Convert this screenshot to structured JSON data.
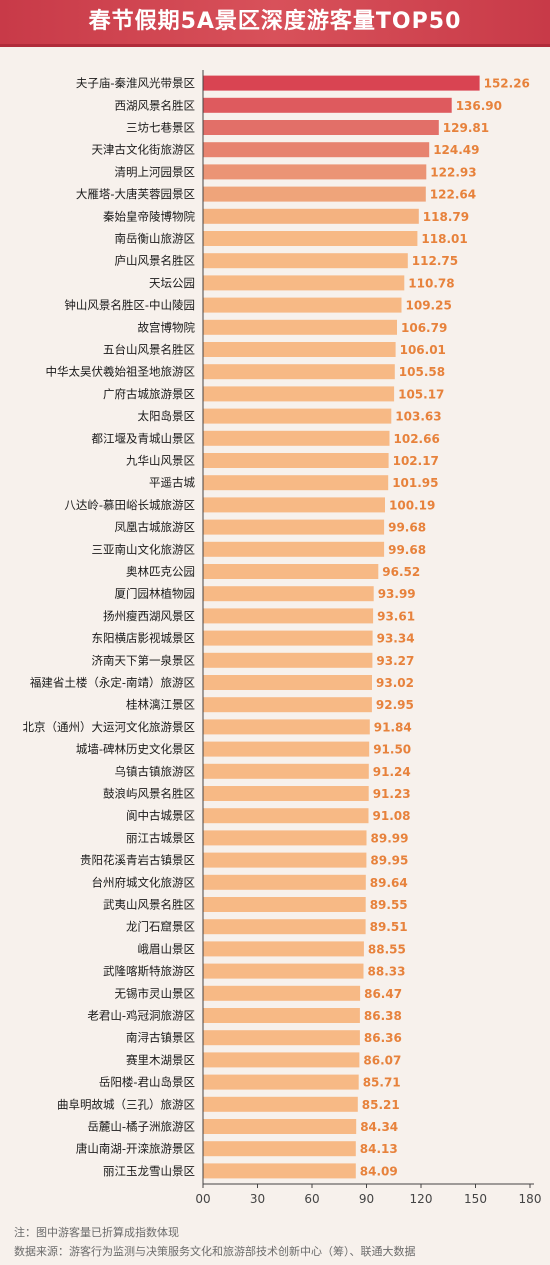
{
  "header": {
    "title": "春节假期5A景区深度游客量TOP50"
  },
  "chart_data": {
    "type": "bar",
    "orientation": "horizontal",
    "title": "春节假期5A景区深度游客量TOP50",
    "categories": [
      "夫子庙-秦淮风光带景区",
      "西湖风景名胜区",
      "三坊七巷景区",
      "天津古文化街旅游区",
      "清明上河园景区",
      "大雁塔-大唐芙蓉园景区",
      "秦始皇帝陵博物院",
      "南岳衡山旅游区",
      "庐山风景名胜区",
      "天坛公园",
      "钟山风景名胜区-中山陵园",
      "故宫博物院",
      "五台山风景名胜区",
      "中华太昊伏羲始祖圣地旅游区",
      "广府古城旅游景区",
      "太阳岛景区",
      "都江堰及青城山景区",
      "九华山风景区",
      "平遥古城",
      "八达岭-慕田峪长城旅游区",
      "凤凰古城旅游区",
      "三亚南山文化旅游区",
      "奥林匹克公园",
      "厦门园林植物园",
      "扬州瘦西湖风景区",
      "东阳横店影视城景区",
      "济南天下第一泉景区",
      "福建省土楼（永定-南靖）旅游区",
      "桂林漓江景区",
      "北京（通州）大运河文化旅游景区",
      "城墙-碑林历史文化景区",
      "乌镇古镇旅游区",
      "鼓浪屿风景名胜区",
      "阆中古城景区",
      "丽江古城景区",
      "贵阳花溪青岩古镇景区",
      "台州府城文化旅游区",
      "武夷山风景名胜区",
      "龙门石窟景区",
      "峨眉山景区",
      "武隆喀斯特旅游区",
      "无锡市灵山景区",
      "老君山-鸡冠洞旅游区",
      "南浔古镇景区",
      "赛里木湖景区",
      "岳阳楼-君山岛景区",
      "曲阜明故城（三孔）旅游区",
      "岳麓山-橘子洲旅游区",
      "唐山南湖-开滦旅游景区",
      "丽江玉龙雪山景区"
    ],
    "values": [
      152.26,
      136.9,
      129.81,
      124.49,
      122.93,
      122.64,
      118.79,
      118.01,
      112.75,
      110.78,
      109.25,
      106.79,
      106.01,
      105.58,
      105.17,
      103.63,
      102.66,
      102.17,
      101.95,
      100.19,
      99.68,
      99.68,
      96.52,
      93.99,
      93.61,
      93.34,
      93.27,
      93.02,
      92.95,
      91.84,
      91.5,
      91.24,
      91.23,
      91.08,
      89.99,
      89.95,
      89.64,
      89.55,
      89.51,
      88.55,
      88.33,
      86.47,
      86.38,
      86.36,
      86.07,
      85.71,
      85.21,
      84.34,
      84.13,
      84.09
    ],
    "value_labels": [
      "152.26",
      "136.90",
      "129.81",
      "124.49",
      "122.93",
      "122.64",
      "118.79",
      "118.01",
      "112.75",
      "110.78",
      "109.25",
      "106.79",
      "106.01",
      "105.58",
      "105.17",
      "103.63",
      "102.66",
      "102.17",
      "101.95",
      "100.19",
      "99.68",
      "99.68",
      "96.52",
      "93.99",
      "93.61",
      "93.34",
      "93.27",
      "93.02",
      "92.95",
      "91.84",
      "91.50",
      "91.24",
      "91.23",
      "91.08",
      "89.99",
      "89.95",
      "89.64",
      "89.55",
      "89.51",
      "88.55",
      "88.33",
      "86.47",
      "86.38",
      "86.36",
      "86.07",
      "85.71",
      "85.21",
      "84.34",
      "84.13",
      "84.09"
    ],
    "xlim": [
      0,
      180
    ],
    "x_ticks": [
      "00",
      "30",
      "60",
      "90",
      "120",
      "150",
      "180"
    ],
    "x_tick_values": [
      0,
      30,
      60,
      90,
      120,
      150,
      180
    ],
    "xlabel": "",
    "ylabel": "",
    "grid": false,
    "legend": "none",
    "colors": {
      "top": "#d94452",
      "gradient": [
        "#d94452",
        "#de5a5e",
        "#e26f68",
        "#e7836f",
        "#eb9475",
        "#efa47a",
        "#f4b280",
        "#f7b985"
      ],
      "default_bar": "#f7b985",
      "value_label": "#e7823c",
      "axis": "#444444",
      "label": "#1a1a1a"
    }
  },
  "footer": {
    "note": "注：图中游客量已折算成指数体现",
    "source": "数据来源：游客行为监测与决策服务文化和旅游部技术创新中心（筹）、联通大数据"
  }
}
